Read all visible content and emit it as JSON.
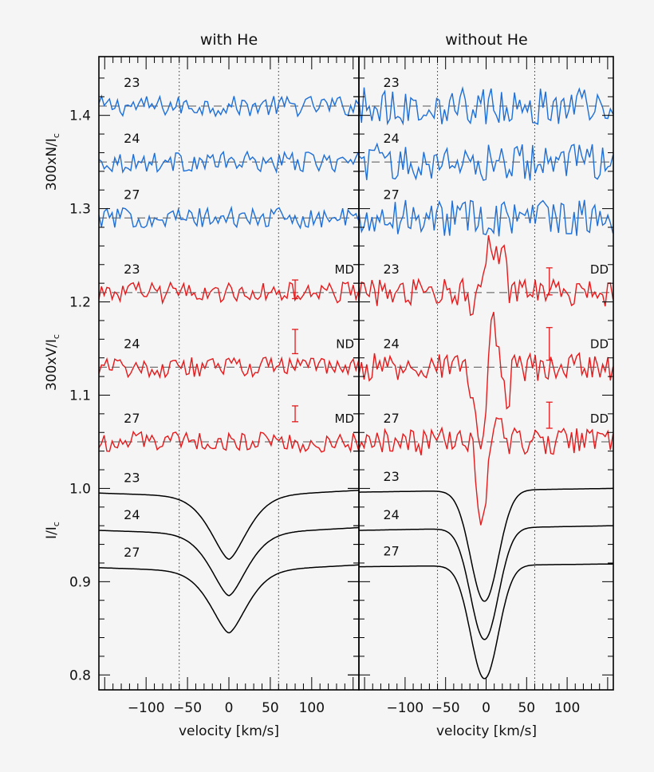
{
  "chart_data": {
    "type": "line",
    "layout": "two side-by-side panels sharing a y-axis; each panel stacks N (blue), V (red) and I (black) profiles",
    "colors": {
      "null": "#1f6fd6",
      "stokes_v": "#e41a1c",
      "intensity": "#000000",
      "reference": "#555555",
      "frame": "#000000",
      "background": "#f5f5f5"
    },
    "xlabel": "velocity [km/s]",
    "xlim": [
      -157,
      157
    ],
    "xticks": [
      -100,
      -50,
      0,
      50,
      100
    ],
    "xtick_labels": [
      "−100",
      "−50",
      "0",
      "50",
      "100"
    ],
    "ylim": [
      0.784,
      1.463
    ],
    "yticks": [
      0.8,
      0.9,
      1.0,
      1.1,
      1.2,
      1.3,
      1.4
    ],
    "ytick_labels": [
      "0.8",
      "0.9",
      "1.0",
      "1.1",
      "1.2",
      "1.3",
      "1.4"
    ],
    "ylabels": [
      {
        "text": "300xN/I",
        "sub": "c",
        "center": 1.35
      },
      {
        "text": "300xV/I",
        "sub": "c",
        "center": 1.135
      },
      {
        "text": "I/I",
        "sub": "c",
        "center": 0.955
      }
    ],
    "vertical_dotted_lines": [
      -60,
      60
    ],
    "panels": [
      {
        "title": "with He",
        "null_profiles": [
          {
            "label": "23",
            "baseline": 1.41
          },
          {
            "label": "24",
            "baseline": 1.35
          },
          {
            "label": "27",
            "baseline": 1.29
          }
        ],
        "v_profiles": [
          {
            "label": "23",
            "baseline": 1.21,
            "detection": "MD",
            "errorbar": [
              1.2035,
              1.2235
            ]
          },
          {
            "label": "24",
            "baseline": 1.13,
            "detection": "ND",
            "errorbar": [
              1.1445,
              1.1705
            ]
          },
          {
            "label": "27",
            "baseline": 1.05,
            "detection": "MD",
            "errorbar": [
              1.0715,
              1.0885
            ]
          }
        ],
        "i_profiles": [
          {
            "label": "23",
            "continuum_left": 0.995,
            "continuum_right": 0.998,
            "minimum": 0.924,
            "center": 0
          },
          {
            "label": "24",
            "continuum_left": 0.955,
            "continuum_right": 0.958,
            "minimum": 0.885,
            "center": 0
          },
          {
            "label": "27",
            "continuum_left": 0.915,
            "continuum_right": 0.918,
            "minimum": 0.845,
            "center": 0
          }
        ],
        "i_width": 34,
        "null_amp": 0.011,
        "v_amp": 0.011,
        "v_signal": []
      },
      {
        "title": "without He",
        "null_profiles": [
          {
            "label": "23",
            "baseline": 1.41
          },
          {
            "label": "24",
            "baseline": 1.35
          },
          {
            "label": "27",
            "baseline": 1.29
          }
        ],
        "v_profiles": [
          {
            "label": "23",
            "baseline": 1.21,
            "detection": "DD",
            "errorbar": [
              1.2075,
              1.2365
            ]
          },
          {
            "label": "24",
            "baseline": 1.13,
            "detection": "DD",
            "errorbar": [
              1.1375,
              1.1725
            ]
          },
          {
            "label": "27",
            "baseline": 1.05,
            "detection": "DD",
            "errorbar": [
              1.0645,
              1.0925
            ]
          }
        ],
        "i_profiles": [
          {
            "label": "23",
            "continuum_left": 0.996,
            "continuum_right": 1.0,
            "minimum": 0.879,
            "center": -2
          },
          {
            "label": "24",
            "continuum_left": 0.955,
            "continuum_right": 0.96,
            "minimum": 0.838,
            "center": -2
          },
          {
            "label": "27",
            "continuum_left": 0.916,
            "continuum_right": 0.919,
            "minimum": 0.796,
            "center": -2
          }
        ],
        "i_width": 26,
        "null_amp": 0.02,
        "v_amp": 0.015,
        "v_signal": [
          {
            "label": "23",
            "points": [
              [
                -20,
                -0.02
              ],
              [
                -8,
                0.005
              ],
              [
                5,
                0.055
              ],
              [
                12,
                0.04
              ],
              [
                20,
                0.05
              ],
              [
                28,
                0.02
              ]
            ]
          },
          {
            "label": "24",
            "points": [
              [
                -25,
                -0.02
              ],
              [
                -10,
                -0.06
              ],
              [
                -5,
                -0.095
              ],
              [
                0,
                -0.04
              ],
              [
                8,
                0.06
              ],
              [
                14,
                0.03
              ],
              [
                22,
                -0.02
              ],
              [
                30,
                -0.05
              ]
            ]
          },
          {
            "label": "27",
            "points": [
              [
                -15,
                -0.03
              ],
              [
                -8,
                -0.08
              ],
              [
                -4,
                -0.095
              ],
              [
                2,
                -0.04
              ],
              [
                10,
                0.025
              ],
              [
                15,
                0.04
              ],
              [
                22,
                -0.01
              ]
            ]
          }
        ]
      }
    ]
  },
  "panels": {
    "left_title": "with He",
    "right_title": "without He"
  },
  "axes": {
    "x_title_left": "velocity [km/s]",
    "x_title_right": "velocity [km/s]"
  }
}
